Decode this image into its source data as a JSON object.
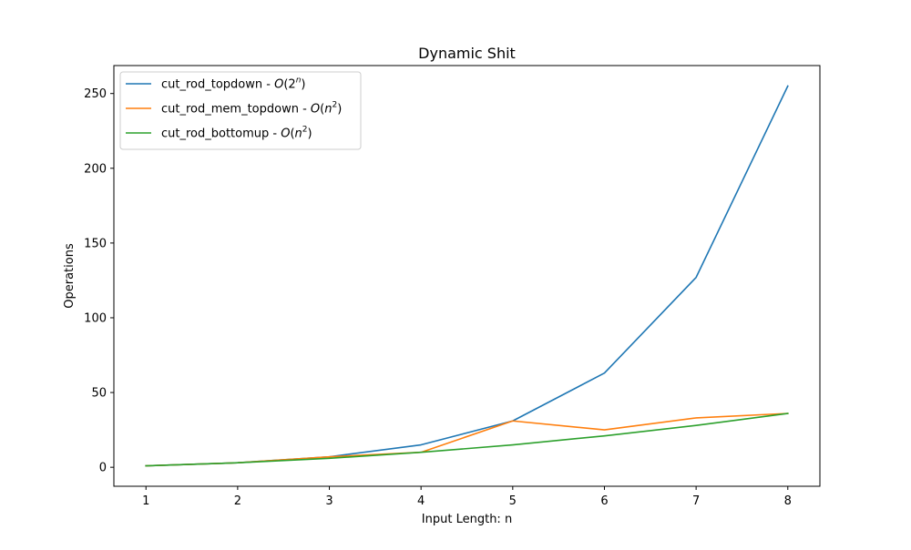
{
  "chart_data": {
    "type": "line",
    "title": "Dynamic Shit",
    "xlabel": "Input Length: n",
    "ylabel": "Operations",
    "x": [
      1,
      2,
      3,
      4,
      5,
      6,
      7,
      8
    ],
    "xlim": [
      0.65,
      8.35
    ],
    "ylim": [
      -12.7,
      268.7
    ],
    "xticks": [
      1,
      2,
      3,
      4,
      5,
      6,
      7,
      8
    ],
    "yticks": [
      0,
      50,
      100,
      150,
      200,
      250
    ],
    "grid": false,
    "legend_position": "upper-left",
    "series": [
      {
        "name_base": "cut_rod_topdown - ",
        "name_math_base": "O",
        "name_math_var": "2",
        "name_math_exp": "n",
        "color": "#1f77b4",
        "values": [
          1,
          3,
          7,
          15,
          31,
          63,
          127,
          255
        ]
      },
      {
        "name_base": "cut_rod_mem_topdown - ",
        "name_math_base": "O",
        "name_math_var": "n",
        "name_math_exp": "2",
        "color": "#ff7f0e",
        "values": [
          1,
          3,
          7,
          10,
          31,
          25,
          33,
          36
        ]
      },
      {
        "name_base": "cut_rod_bottomup - ",
        "name_math_base": "O",
        "name_math_var": "n",
        "name_math_exp": "2",
        "color": "#2ca02c",
        "values": [
          1,
          3,
          6,
          10,
          15,
          21,
          28,
          36
        ]
      }
    ]
  }
}
